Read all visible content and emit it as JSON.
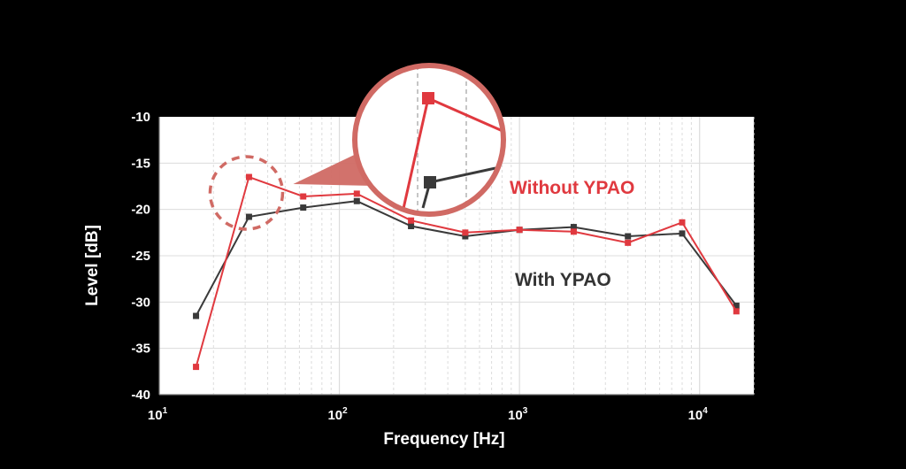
{
  "chart_data": {
    "type": "line",
    "title": "",
    "xlabel": "Frequency [Hz]",
    "ylabel": "Level [dB]",
    "x_scale": "log",
    "xlim": [
      10,
      20000
    ],
    "ylim": [
      -40,
      -10
    ],
    "x_tick_labels": [
      {
        "value": 10,
        "base": "10",
        "exp": "1"
      },
      {
        "value": 100,
        "base": "10",
        "exp": "2"
      },
      {
        "value": 1000,
        "base": "10",
        "exp": "3"
      },
      {
        "value": 10000,
        "base": "10",
        "exp": "4"
      }
    ],
    "y_ticks": [
      -10,
      -15,
      -20,
      -25,
      -30,
      -35,
      -40
    ],
    "grid": true,
    "x": [
      16,
      31.5,
      63,
      125,
      250,
      500,
      1000,
      2000,
      4000,
      8000,
      16000
    ],
    "series": [
      {
        "name": "With YPAO",
        "color": "#3a3a3a",
        "values": [
          -31.5,
          -20.8,
          -19.8,
          -19.1,
          -21.8,
          -22.9,
          -22.2,
          -21.9,
          -22.9,
          -22.6,
          -30.4
        ]
      },
      {
        "name": "Without YPAO",
        "color": "#e0393f",
        "values": [
          -37,
          -16.5,
          -18.6,
          -18.3,
          -21.2,
          -22.5,
          -22.2,
          -22.4,
          -23.6,
          -21.4,
          -31
        ]
      }
    ],
    "annotations": [
      {
        "type": "zoom-callout",
        "target_series": "Without YPAO",
        "target_x": 31.5
      }
    ]
  },
  "colors": {
    "background": "#000000",
    "plot_background": "#ffffff",
    "gridline": "#dcdcdc",
    "axis_text": "#ffffff",
    "callout": "#d06a64"
  }
}
